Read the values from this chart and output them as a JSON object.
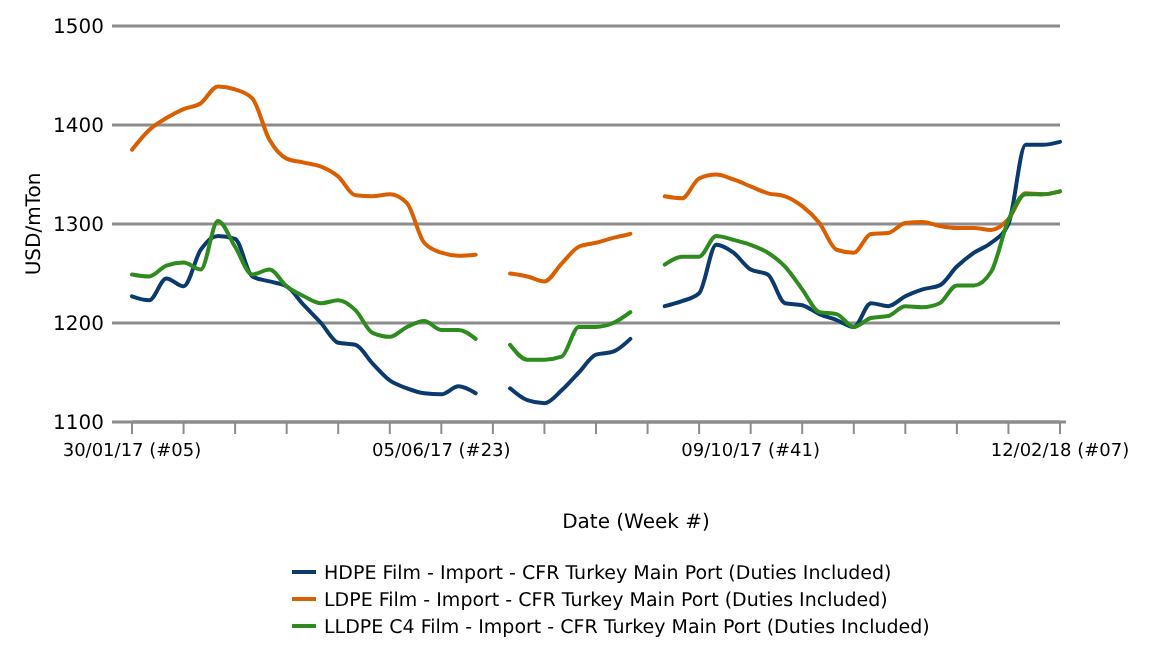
{
  "chart_data": {
    "type": "line",
    "xlabel": "Date (Week #)",
    "ylabel": "USD/mTon",
    "x": [
      "2017-01-30",
      "2017-02-06",
      "2017-02-13",
      "2017-02-20",
      "2017-02-27",
      "2017-03-06",
      "2017-03-13",
      "2017-03-20",
      "2017-03-27",
      "2017-04-03",
      "2017-04-10",
      "2017-04-17",
      "2017-04-24",
      "2017-05-01",
      "2017-05-08",
      "2017-05-15",
      "2017-05-22",
      "2017-05-29",
      "2017-06-05",
      "2017-06-12",
      "2017-06-19",
      "2017-06-26",
      "2017-07-03",
      "2017-07-10",
      "2017-07-17",
      "2017-07-24",
      "2017-07-31",
      "2017-08-07",
      "2017-08-14",
      "2017-08-21",
      "2017-08-28",
      "2017-09-04",
      "2017-09-11",
      "2017-09-18",
      "2017-09-25",
      "2017-10-02",
      "2017-10-09",
      "2017-10-16",
      "2017-10-23",
      "2017-10-30",
      "2017-11-06",
      "2017-11-13",
      "2017-11-20",
      "2017-11-27",
      "2017-12-04",
      "2017-12-11",
      "2017-12-18",
      "2017-12-25",
      "2018-01-01",
      "2018-01-08",
      "2018-01-15",
      "2018-01-22",
      "2018-01-29",
      "2018-02-05",
      "2018-02-12"
    ],
    "series": [
      {
        "name": "HDPE Film - Import - CFR Turkey Main Port (Duties Included)",
        "color": "#0b3a6e",
        "values": [
          1227,
          1223,
          1245,
          1237,
          1274,
          1288,
          1285,
          1247,
          1242,
          1237,
          1218,
          1200,
          1180,
          1178,
          1159,
          1142,
          1134,
          1129,
          1128,
          1136,
          1129,
          null,
          1134,
          1122,
          1119,
          1132,
          1150,
          1168,
          1171,
          1184,
          null,
          1217,
          1222,
          1230,
          1279,
          1271,
          1254,
          1249,
          1220,
          1218,
          1209,
          1203,
          1196,
          1220,
          1217,
          1227,
          1234,
          1238,
          1257,
          1271,
          1281,
          1300,
          1380,
          1380,
          1383
        ]
      },
      {
        "name": "LDPE Film - Import - CFR Turkey Main Port (Duties Included)",
        "color": "#d95f02",
        "values": [
          1375,
          1395,
          1407,
          1416,
          1422,
          1439,
          1436,
          1427,
          1385,
          1366,
          1362,
          1358,
          1348,
          1329,
          1328,
          1330,
          1321,
          1281,
          1271,
          1268,
          1269,
          null,
          1250,
          1247,
          1242,
          1260,
          1277,
          1281,
          1286,
          1290,
          null,
          1328,
          1326,
          1346,
          1350,
          1345,
          1338,
          1331,
          1328,
          1318,
          1301,
          1274,
          1271,
          1290,
          1291,
          1301,
          1302,
          1298,
          1296,
          1296,
          1294,
          1305,
          1331,
          1330,
          1333
        ]
      },
      {
        "name": "LLDPE C4 Film - Import - CFR Turkey Main Port (Duties Included)",
        "color": "#2e8b1e",
        "values": [
          1249,
          1247,
          1258,
          1261,
          1254,
          1303,
          1277,
          1249,
          1254,
          1237,
          1227,
          1220,
          1223,
          1213,
          1190,
          1186,
          1196,
          1202,
          1193,
          1193,
          1184,
          null,
          1178,
          1163,
          1163,
          1166,
          1196,
          1196,
          1200,
          1211,
          null,
          1259,
          1267,
          1267,
          1288,
          1284,
          1279,
          1271,
          1257,
          1234,
          1211,
          1209,
          1196,
          1205,
          1207,
          1217,
          1216,
          1220,
          1238,
          1238,
          1252,
          1304,
          1330,
          1330,
          1333
        ]
      }
    ],
    "xlim": [
      "2017-01-30",
      "2018-02-12"
    ],
    "xticks": [
      {
        "value": "2017-01-30",
        "label": "30/01/17 (#05)"
      },
      {
        "value": "2017-02-20",
        "label": null
      },
      {
        "value": "2017-03-13",
        "label": null
      },
      {
        "value": "2017-04-03",
        "label": null
      },
      {
        "value": "2017-04-24",
        "label": null
      },
      {
        "value": "2017-05-15",
        "label": null
      },
      {
        "value": "2017-06-05",
        "label": "05/06/17 (#23)"
      },
      {
        "value": "2017-06-26",
        "label": null
      },
      {
        "value": "2017-07-17",
        "label": null
      },
      {
        "value": "2017-08-07",
        "label": null
      },
      {
        "value": "2017-08-28",
        "label": null
      },
      {
        "value": "2017-09-18",
        "label": null
      },
      {
        "value": "2017-10-09",
        "label": "09/10/17 (#41)"
      },
      {
        "value": "2017-10-30",
        "label": null
      },
      {
        "value": "2017-11-20",
        "label": null
      },
      {
        "value": "2017-12-11",
        "label": null
      },
      {
        "value": "2018-01-01",
        "label": null
      },
      {
        "value": "2018-01-22",
        "label": null
      },
      {
        "value": "2018-02-12",
        "label": "12/02/18 (#07)"
      }
    ],
    "ylim": [
      1100,
      1500
    ],
    "yticks": [
      1100,
      1200,
      1300,
      1400,
      1500
    ],
    "grid": "y",
    "legend": "bottom",
    "line_style": "solid",
    "marker": "none"
  }
}
